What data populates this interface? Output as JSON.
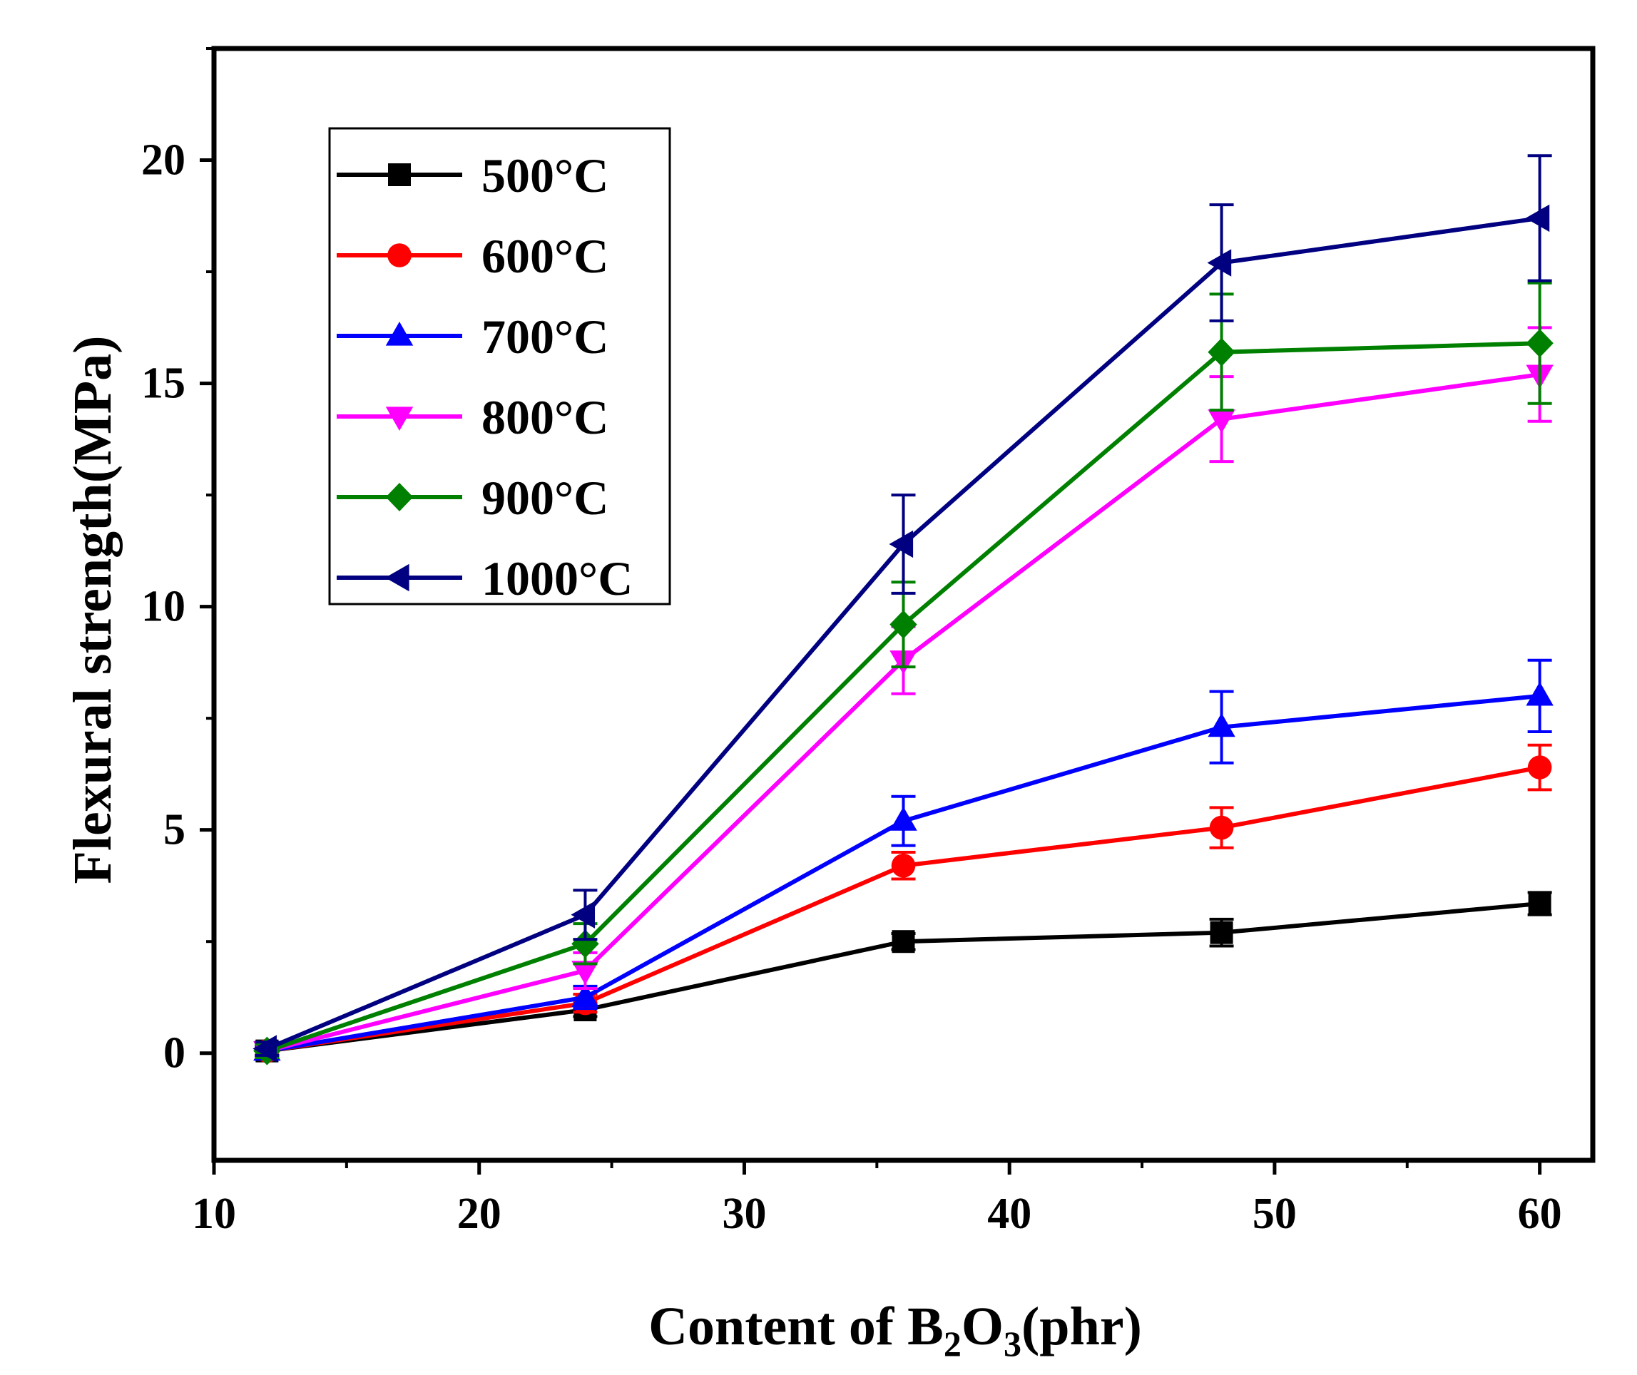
{
  "chart_data": {
    "type": "line",
    "xlabel": {
      "prefix": "Content of B",
      "sub1": "2",
      "mid": "O",
      "sub2": "3",
      "suffix": "(phr)"
    },
    "ylabel": "Flexural strength(MPa)",
    "xlim": [
      10,
      62
    ],
    "ylim": [
      -2.4,
      22.5
    ],
    "xticks": [
      10,
      20,
      30,
      40,
      50,
      60
    ],
    "xtick_labels": [
      "10",
      "20",
      "30",
      "40",
      "50",
      "60"
    ],
    "yticks": [
      0,
      5,
      10,
      15,
      20
    ],
    "ytick_labels": [
      "0",
      "5",
      "10",
      "15",
      "20"
    ],
    "x": [
      12,
      24,
      36,
      48,
      60
    ],
    "legend_position": "top-left",
    "grid": false,
    "series": [
      {
        "name": "500°C",
        "color": "#000000",
        "marker": "square",
        "values": [
          0.05,
          0.97,
          2.5,
          2.7,
          3.35
        ],
        "errors": [
          0.1,
          0.15,
          0.18,
          0.3,
          0.25
        ]
      },
      {
        "name": "600°C",
        "color": "#ff0000",
        "marker": "circle",
        "values": [
          0.05,
          1.12,
          4.2,
          5.05,
          6.4
        ],
        "errors": [
          0.1,
          0.2,
          0.3,
          0.45,
          0.5
        ]
      },
      {
        "name": "700°C",
        "color": "#0000ff",
        "marker": "triangle-up",
        "values": [
          0.05,
          1.25,
          5.2,
          7.3,
          8.0
        ],
        "errors": [
          0.1,
          0.25,
          0.55,
          0.8,
          0.8
        ]
      },
      {
        "name": "800°C",
        "color": "#ff00ff",
        "marker": "triangle-down",
        "values": [
          0.05,
          1.85,
          8.8,
          14.2,
          15.2
        ],
        "errors": [
          0.15,
          0.4,
          0.75,
          0.95,
          1.05
        ]
      },
      {
        "name": "900°C",
        "color": "#008000",
        "marker": "diamond",
        "values": [
          0.05,
          2.45,
          9.6,
          15.7,
          15.9
        ],
        "errors": [
          0.15,
          0.45,
          0.95,
          1.3,
          1.35
        ]
      },
      {
        "name": "1000°C",
        "color": "#000080",
        "marker": "triangle-left",
        "values": [
          0.1,
          3.1,
          11.4,
          17.7,
          18.7
        ],
        "errors": [
          0.15,
          0.55,
          1.1,
          1.3,
          1.4
        ]
      }
    ]
  }
}
